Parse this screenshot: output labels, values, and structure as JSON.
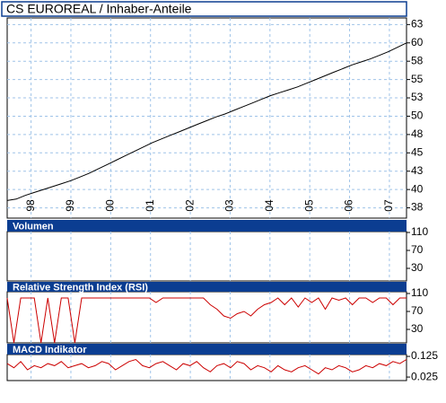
{
  "chart_data": [
    {
      "type": "line",
      "title": "CS EUROREAL / Inhaber-Anteile",
      "xlim": [
        1997.4,
        2007.43
      ],
      "xticks": [
        {
          "value": 1998,
          "label": "98"
        },
        {
          "value": 1999,
          "label": "99"
        },
        {
          "value": 2000,
          "label": "00"
        },
        {
          "value": 2001,
          "label": "01"
        },
        {
          "value": 2002,
          "label": "02"
        },
        {
          "value": 2003,
          "label": "03"
        },
        {
          "value": 2004,
          "label": "04"
        },
        {
          "value": 2005,
          "label": "05"
        },
        {
          "value": 2006,
          "label": "06"
        },
        {
          "value": 2007,
          "label": "07"
        }
      ],
      "ylim": [
        36.1,
        63.4
      ],
      "yticks": [
        {
          "value": 62.5,
          "label": "63"
        },
        60,
        {
          "value": 57.5,
          "label": "58"
        },
        55,
        {
          "value": 52.5,
          "label": "53"
        },
        50,
        {
          "value": 47.5,
          "label": "48"
        },
        45,
        {
          "value": 42.5,
          "label": "43"
        },
        40,
        {
          "value": 37.5,
          "label": "38"
        }
      ],
      "grid": true,
      "series": [
        {
          "color": "#000000",
          "values": [
            38.5,
            38.7,
            39.2,
            39.6,
            40.0,
            40.4,
            40.8,
            41.2,
            41.7,
            42.2,
            42.8,
            43.4,
            44.0,
            44.6,
            45.2,
            45.8,
            46.4,
            46.9,
            47.4,
            47.9,
            48.4,
            48.9,
            49.4,
            49.9,
            50.3,
            50.8,
            51.3,
            51.8,
            52.3,
            52.8,
            53.2,
            53.6,
            54.0,
            54.5,
            55.0,
            55.5,
            56.0,
            56.5,
            57.0,
            57.4,
            57.8,
            58.3,
            58.8,
            59.4,
            60.0
          ]
        }
      ]
    },
    {
      "type": "bar",
      "title": "Volumen",
      "ylim": [
        2,
        112
      ],
      "yticks": [
        110,
        70,
        30
      ],
      "grid": true
    },
    {
      "type": "line",
      "title": "Relative Strength Index (RSI)",
      "ylim": [
        0,
        114
      ],
      "yticks": [
        110,
        70,
        30
      ],
      "grid": true,
      "series": [
        {
          "color": "#cc0000",
          "values": [
            100,
            0,
            100,
            100,
            100,
            0,
            100,
            0,
            100,
            100,
            0,
            100,
            100,
            100,
            100,
            100,
            100,
            100,
            100,
            100,
            100,
            100,
            90,
            100,
            100,
            100,
            100,
            100,
            100,
            100,
            85,
            75,
            60,
            55,
            65,
            70,
            60,
            75,
            85,
            90,
            100,
            85,
            100,
            80,
            100,
            90,
            100,
            75,
            100,
            95,
            100,
            85,
            100,
            100,
            90,
            100,
            100,
            85,
            100,
            100
          ]
        }
      ]
    },
    {
      "type": "line",
      "title": "MACD Indikator",
      "ylim": [
        0.008,
        0.134
      ],
      "yticks": [
        0.125,
        0.025
      ],
      "grid": true,
      "series": [
        {
          "color": "#cc0000",
          "values": [
            0.09,
            0.07,
            0.1,
            0.06,
            0.08,
            0.07,
            0.09,
            0.08,
            0.1,
            0.07,
            0.08,
            0.09,
            0.07,
            0.08,
            0.1,
            0.09,
            0.06,
            0.08,
            0.1,
            0.11,
            0.08,
            0.07,
            0.09,
            0.1,
            0.08,
            0.06,
            0.09,
            0.08,
            0.1,
            0.07,
            0.05,
            0.08,
            0.09,
            0.07,
            0.1,
            0.09,
            0.06,
            0.08,
            0.07,
            0.05,
            0.08,
            0.06,
            0.05,
            0.07,
            0.08,
            0.06,
            0.04,
            0.07,
            0.06,
            0.08,
            0.07,
            0.05,
            0.06,
            0.08,
            0.07,
            0.09,
            0.08,
            0.1,
            0.09,
            0.11
          ]
        }
      ]
    }
  ]
}
